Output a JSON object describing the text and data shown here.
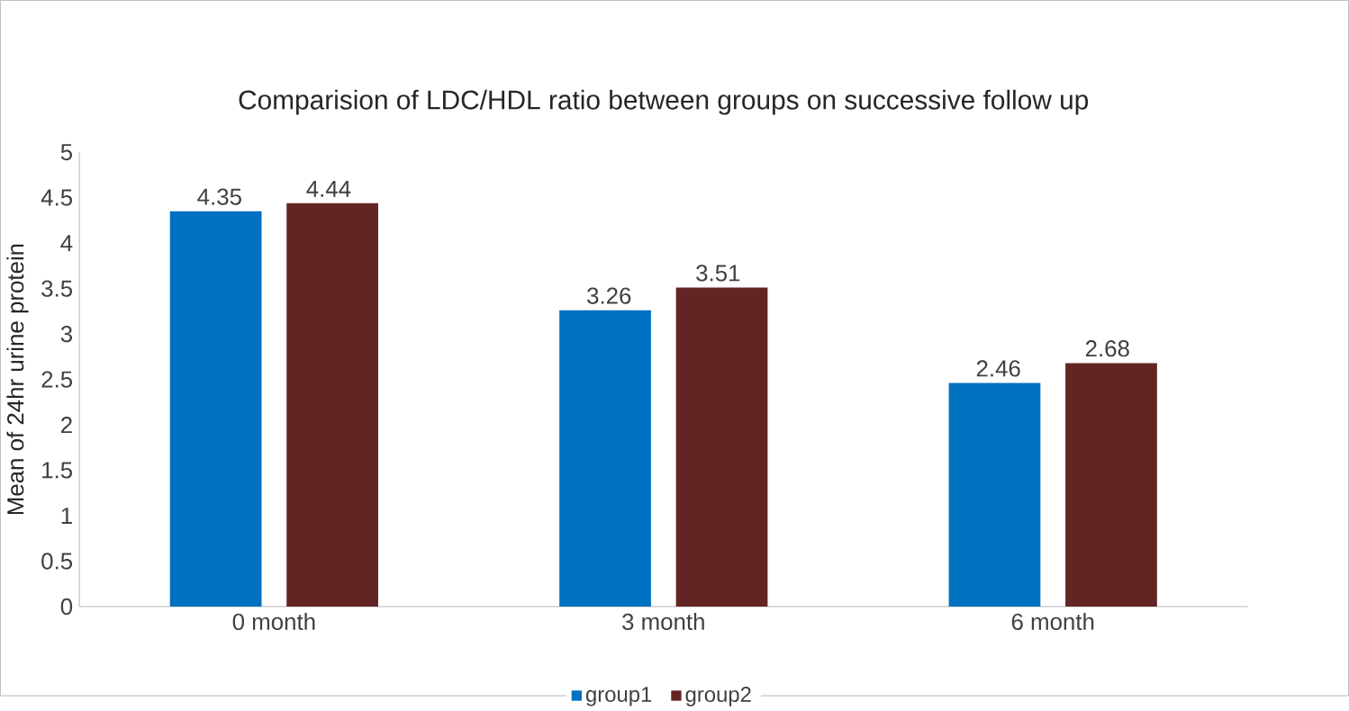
{
  "chart_data": {
    "type": "bar",
    "title": "Comparision of LDC/HDL ratio between groups on successive  follow up",
    "ylabel": "Mean of 24hr urine protein",
    "categories": [
      "0 month",
      "3 month",
      "6 month"
    ],
    "series": [
      {
        "name": "group1",
        "color": "#0070c0",
        "values": [
          4.35,
          3.26,
          2.46
        ]
      },
      {
        "name": "group2",
        "color": "#632523",
        "values": [
          4.44,
          3.51,
          2.68
        ]
      }
    ],
    "ylim": [
      0,
      5
    ],
    "yticks": [
      0,
      0.5,
      1,
      1.5,
      2,
      2.5,
      3,
      3.5,
      4,
      4.5,
      5
    ],
    "data_labels": true,
    "grid": false,
    "legend": "bottom"
  }
}
